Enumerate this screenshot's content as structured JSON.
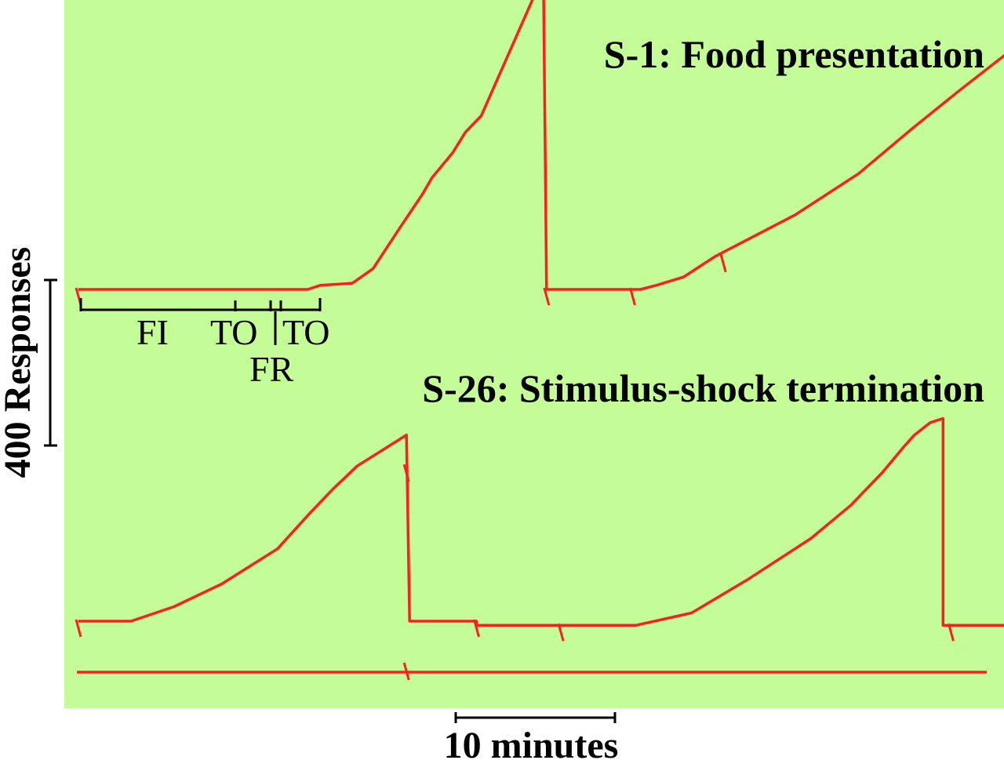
{
  "colors": {
    "background": "#c4fd98",
    "record": "#ff1e1e",
    "ink": "#000000"
  },
  "chart_data": {
    "type": "line",
    "chart_kind": "cumulative record",
    "units": {
      "x": "minutes",
      "y": "responses"
    },
    "scale_bars": {
      "y": {
        "label": "400 Responses",
        "value": 400
      },
      "x": {
        "label": "10 minutes",
        "value": 10
      }
    },
    "segment_labels": [
      "FI",
      "TO",
      "FR",
      "TO"
    ],
    "records": [
      {
        "title": "S-1: Food presentation",
        "points": [
          [
            0,
            0
          ],
          [
            14.4,
            0
          ],
          [
            15.2,
            10
          ],
          [
            17.2,
            15
          ],
          [
            18.5,
            50
          ],
          [
            20.2,
            150
          ],
          [
            21.6,
            230
          ],
          [
            22.2,
            270
          ],
          [
            23.5,
            330
          ],
          [
            24.3,
            380
          ],
          [
            25.3,
            420
          ],
          [
            29.2,
            760
          ],
          [
            29.4,
            0
          ],
          [
            35.3,
            0
          ],
          [
            36.3,
            10
          ],
          [
            38,
            30
          ],
          [
            40,
            80
          ],
          [
            45,
            180
          ],
          [
            49,
            280
          ],
          [
            52.4,
            390
          ],
          [
            55.3,
            480
          ],
          [
            59.3,
            600
          ],
          [
            59.4,
            0
          ],
          [
            64.8,
            0
          ],
          [
            70.5,
            0
          ],
          [
            79.3,
            0
          ],
          [
            80.8,
            40
          ],
          [
            83,
            80
          ],
          [
            85.3,
            150
          ],
          [
            87.8,
            260
          ],
          [
            89.3,
            350
          ],
          [
            89.8,
            460
          ],
          [
            90.3,
            440
          ],
          [
            90.6,
            450
          ],
          [
            90.8,
            0
          ],
          [
            95.8,
            0
          ],
          [
            100.3,
            0
          ],
          [
            109.8,
            0
          ],
          [
            111.8,
            40
          ],
          [
            114.3,
            80
          ],
          [
            117.3,
            150
          ],
          [
            120.3,
            260
          ],
          [
            122.3,
            360
          ],
          [
            122.8,
            440
          ],
          [
            123.3,
            450
          ],
          [
            123.5,
            0
          ],
          [
            128.3,
            0
          ]
        ],
        "ticks": [
          0,
          29.4,
          34.8,
          40.5,
          69,
          74.9,
          100.3,
          105.9,
          133.4
        ]
      },
      {
        "title": "S-26: Stimulus-shock termination",
        "points": [
          [
            0,
            0
          ],
          [
            3.3,
            0
          ],
          [
            6,
            35
          ],
          [
            9,
            90
          ],
          [
            12.5,
            175
          ],
          [
            14.5,
            260
          ],
          [
            16,
            320
          ],
          [
            17.5,
            375
          ],
          [
            20.6,
            450
          ],
          [
            20.8,
            0
          ],
          [
            25,
            0
          ],
          [
            25,
            -10
          ],
          [
            35,
            -10
          ],
          [
            38.5,
            20
          ],
          [
            42,
            100
          ],
          [
            46,
            200
          ],
          [
            48.5,
            280
          ],
          [
            50.5,
            360
          ],
          [
            51.8,
            420
          ],
          [
            52.5,
            450
          ],
          [
            53.5,
            480
          ],
          [
            54.3,
            490
          ],
          [
            54.3,
            -10
          ],
          [
            63.5,
            -10
          ],
          [
            69.5,
            -10
          ],
          [
            74,
            20
          ],
          [
            77,
            50
          ],
          [
            80,
            100
          ],
          [
            84,
            170
          ],
          [
            87,
            240
          ],
          [
            90,
            320
          ],
          [
            91.5,
            380
          ],
          [
            92.5,
            430
          ],
          [
            94.6,
            490
          ],
          [
            94.8,
            -10
          ],
          [
            100,
            -10
          ],
          [
            107,
            -10
          ],
          [
            114,
            -10
          ],
          [
            116,
            20
          ],
          [
            119,
            60
          ],
          [
            122,
            130
          ],
          [
            124.5,
            200
          ],
          [
            126.6,
            290
          ],
          [
            126.8,
            0
          ],
          [
            135.4,
            0
          ]
        ],
        "ticks": [
          0,
          20.6,
          25,
          30.3,
          54.8,
          60.1,
          84.5,
          90.6,
          114.1,
          129.8
        ]
      }
    ],
    "time_line_ticks": [
      20.6,
      114.1
    ]
  }
}
